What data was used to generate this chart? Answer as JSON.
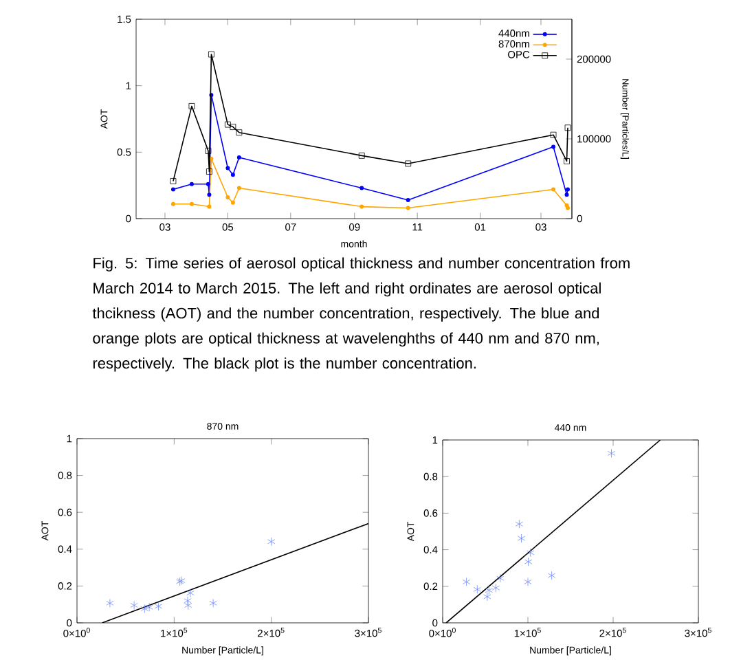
{
  "chart_data": [
    {
      "type": "line",
      "xlabel": "month",
      "ylabel": "AOT",
      "y2label": "Number [Particles/L]",
      "x": [
        "2014-03-09",
        "2014-03-27",
        "2014-04-12",
        "2014-04-13",
        "2014-04-15",
        "2014-05-01",
        "2014-05-06",
        "2014-05-12",
        "2014-09-08",
        "2014-10-23",
        "2015-03-13",
        "2015-03-26",
        "2015-03-27"
      ],
      "series": [
        {
          "name": "440nm",
          "color": "#0000ff",
          "marker": "circle",
          "values": [
            0.22,
            0.26,
            0.26,
            0.18,
            0.93,
            0.38,
            0.33,
            0.46,
            0.23,
            0.14,
            0.54,
            0.18,
            0.22
          ]
        },
        {
          "name": "870nm",
          "color": "#ffa500",
          "marker": "circle",
          "values": [
            0.11,
            0.11,
            null,
            0.09,
            0.45,
            0.16,
            0.12,
            0.23,
            0.09,
            0.08,
            0.22,
            0.1,
            0.08
          ]
        },
        {
          "name": "OPC",
          "color": "#000000",
          "marker": "square",
          "axis": "y2",
          "values": [
            47000,
            141000,
            85000,
            59000,
            206000,
            118000,
            115000,
            108000,
            79000,
            69000,
            105000,
            72000,
            114000
          ]
        }
      ],
      "xlim": [
        "2014-02-01",
        "2015-03-31"
      ],
      "xticks": [
        {
          "value": "2014-03-01",
          "label": "03"
        },
        {
          "value": "2014-05-01",
          "label": "05"
        },
        {
          "value": "2014-07-01",
          "label": "07"
        },
        {
          "value": "2014-09-01",
          "label": "09"
        },
        {
          "value": "2014-11-01",
          "label": "11"
        },
        {
          "value": "2015-01-01",
          "label": "01"
        },
        {
          "value": "2015-03-01",
          "label": "03"
        }
      ],
      "ylim": [
        0,
        1.5
      ],
      "yticks": [
        0,
        0.5,
        1,
        1.5
      ],
      "y2lim": [
        0,
        250000
      ],
      "y2ticks": [
        0,
        100000,
        200000
      ],
      "legend": "top right",
      "annotations": [
        "Fig. 5: Time series of aerosol optical thickness and number concentration from March 2014 to March 2015. The left and right ordinates are aerosol optical thcikness (AOT) and the number concentration, respectively. The blue and orange plots are optical thickness at wavelenghths of 440 nm and 870 nm, respectively. The black plot is the number concentration."
      ]
    },
    {
      "type": "scatter",
      "title": "870 nm",
      "xlabel": "Number [Particle/L]",
      "ylabel": "AOT",
      "marker": "cross",
      "series": [
        {
          "color": "#6e8cff",
          "x": [
            33900,
            58800,
            69600,
            74400,
            83800,
            105900,
            107300,
            113900,
            114400,
            116700,
            140200,
            200000
          ],
          "values": [
            0.107,
            0.095,
            0.077,
            0.085,
            0.09,
            0.224,
            0.229,
            0.12,
            0.095,
            0.162,
            0.107,
            0.441
          ]
        },
        {
          "type": "line",
          "color": "#000000",
          "marker": "none",
          "x": [
            25900,
            300000
          ],
          "values": [
            0,
            0.539
          ]
        }
      ],
      "xlim": [
        0,
        300000
      ],
      "xticks": [
        {
          "value": 0,
          "label": "0×10$^{0}$"
        },
        {
          "value": 100000,
          "label": "1×10$^{5}$"
        },
        {
          "value": 200000,
          "label": "2×10$^{5}$"
        },
        {
          "value": 300000,
          "label": "3×10$^{5}$"
        }
      ],
      "ylim": [
        0,
        1
      ],
      "yticks": [
        0,
        0.2,
        0.4,
        0.6,
        0.8,
        1
      ]
    },
    {
      "type": "scatter",
      "title": "440 nm",
      "xlabel": "Number [Particle/L]",
      "ylabel": "AOT",
      "marker": "cross",
      "series": [
        {
          "color": "#6e8cff",
          "x": [
            27900,
            40600,
            54300,
            52300,
            62400,
            67500,
            89800,
            92400,
            100000,
            100500,
            103000,
            127900,
            198000
          ],
          "values": [
            0.224,
            0.183,
            0.178,
            0.143,
            0.191,
            0.244,
            0.54,
            0.462,
            0.224,
            0.334,
            0.384,
            0.259,
            0.927
          ]
        },
        {
          "type": "line",
          "color": "#000000",
          "marker": "none",
          "x": [
            4100,
            255300
          ],
          "values": [
            0,
            1
          ]
        }
      ],
      "xlim": [
        0,
        300000
      ],
      "xticks": [
        {
          "value": 0,
          "label": "0×10$^{0}$"
        },
        {
          "value": 100000,
          "label": "1×10$^{5}$"
        },
        {
          "value": 200000,
          "label": "2×10$^{5}$"
        },
        {
          "value": 300000,
          "label": "3×10$^{5}$"
        }
      ],
      "ylim": [
        0,
        1
      ],
      "yticks": [
        0,
        0.2,
        0.4,
        0.6,
        0.8,
        1
      ]
    }
  ]
}
